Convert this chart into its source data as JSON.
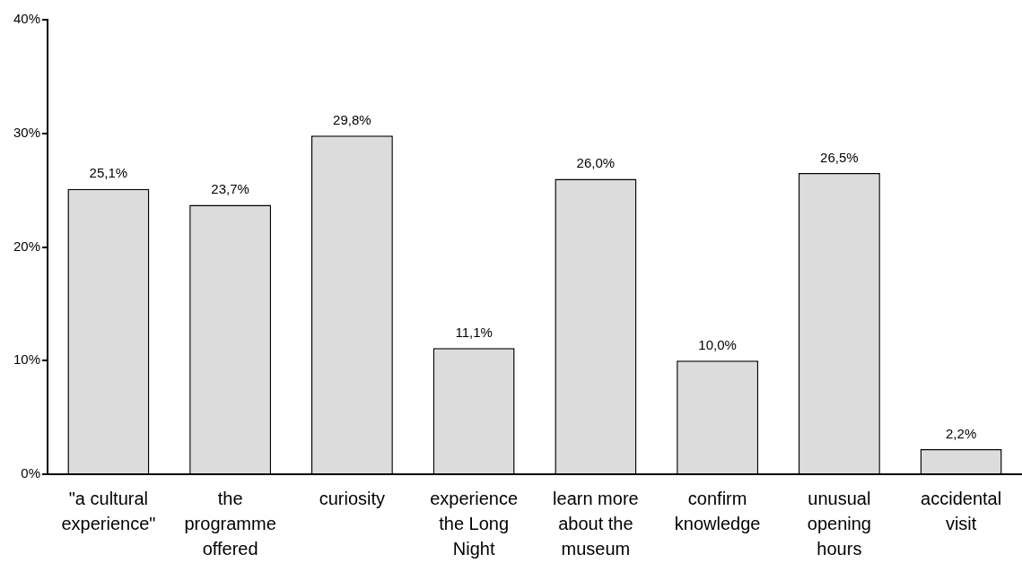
{
  "chart_data": {
    "type": "bar",
    "categories": [
      "\"a cultural\nexperience\"",
      "the\nprogramme\noffered",
      "curiosity",
      "experience\nthe Long\nNight",
      "learn more\nabout the\nmuseum",
      "confirm\nknowledge",
      "unusual\nopening\nhours",
      "accidental\nvisit"
    ],
    "values": [
      25.1,
      23.7,
      29.8,
      11.1,
      26.0,
      10.0,
      26.5,
      2.2
    ],
    "value_labels": [
      "25,1%",
      "23,7%",
      "29,8%",
      "11,1%",
      "26,0%",
      "10,0%",
      "26,5%",
      "2,2%"
    ],
    "color": "#dcdcdc",
    "ylim": [
      0,
      40
    ],
    "yticks": [
      {
        "value": 0,
        "label": "0%"
      },
      {
        "value": 10,
        "label": "10%"
      },
      {
        "value": 20,
        "label": "20%"
      },
      {
        "value": 30,
        "label": "30%"
      },
      {
        "value": 40,
        "label": "40%"
      }
    ]
  }
}
